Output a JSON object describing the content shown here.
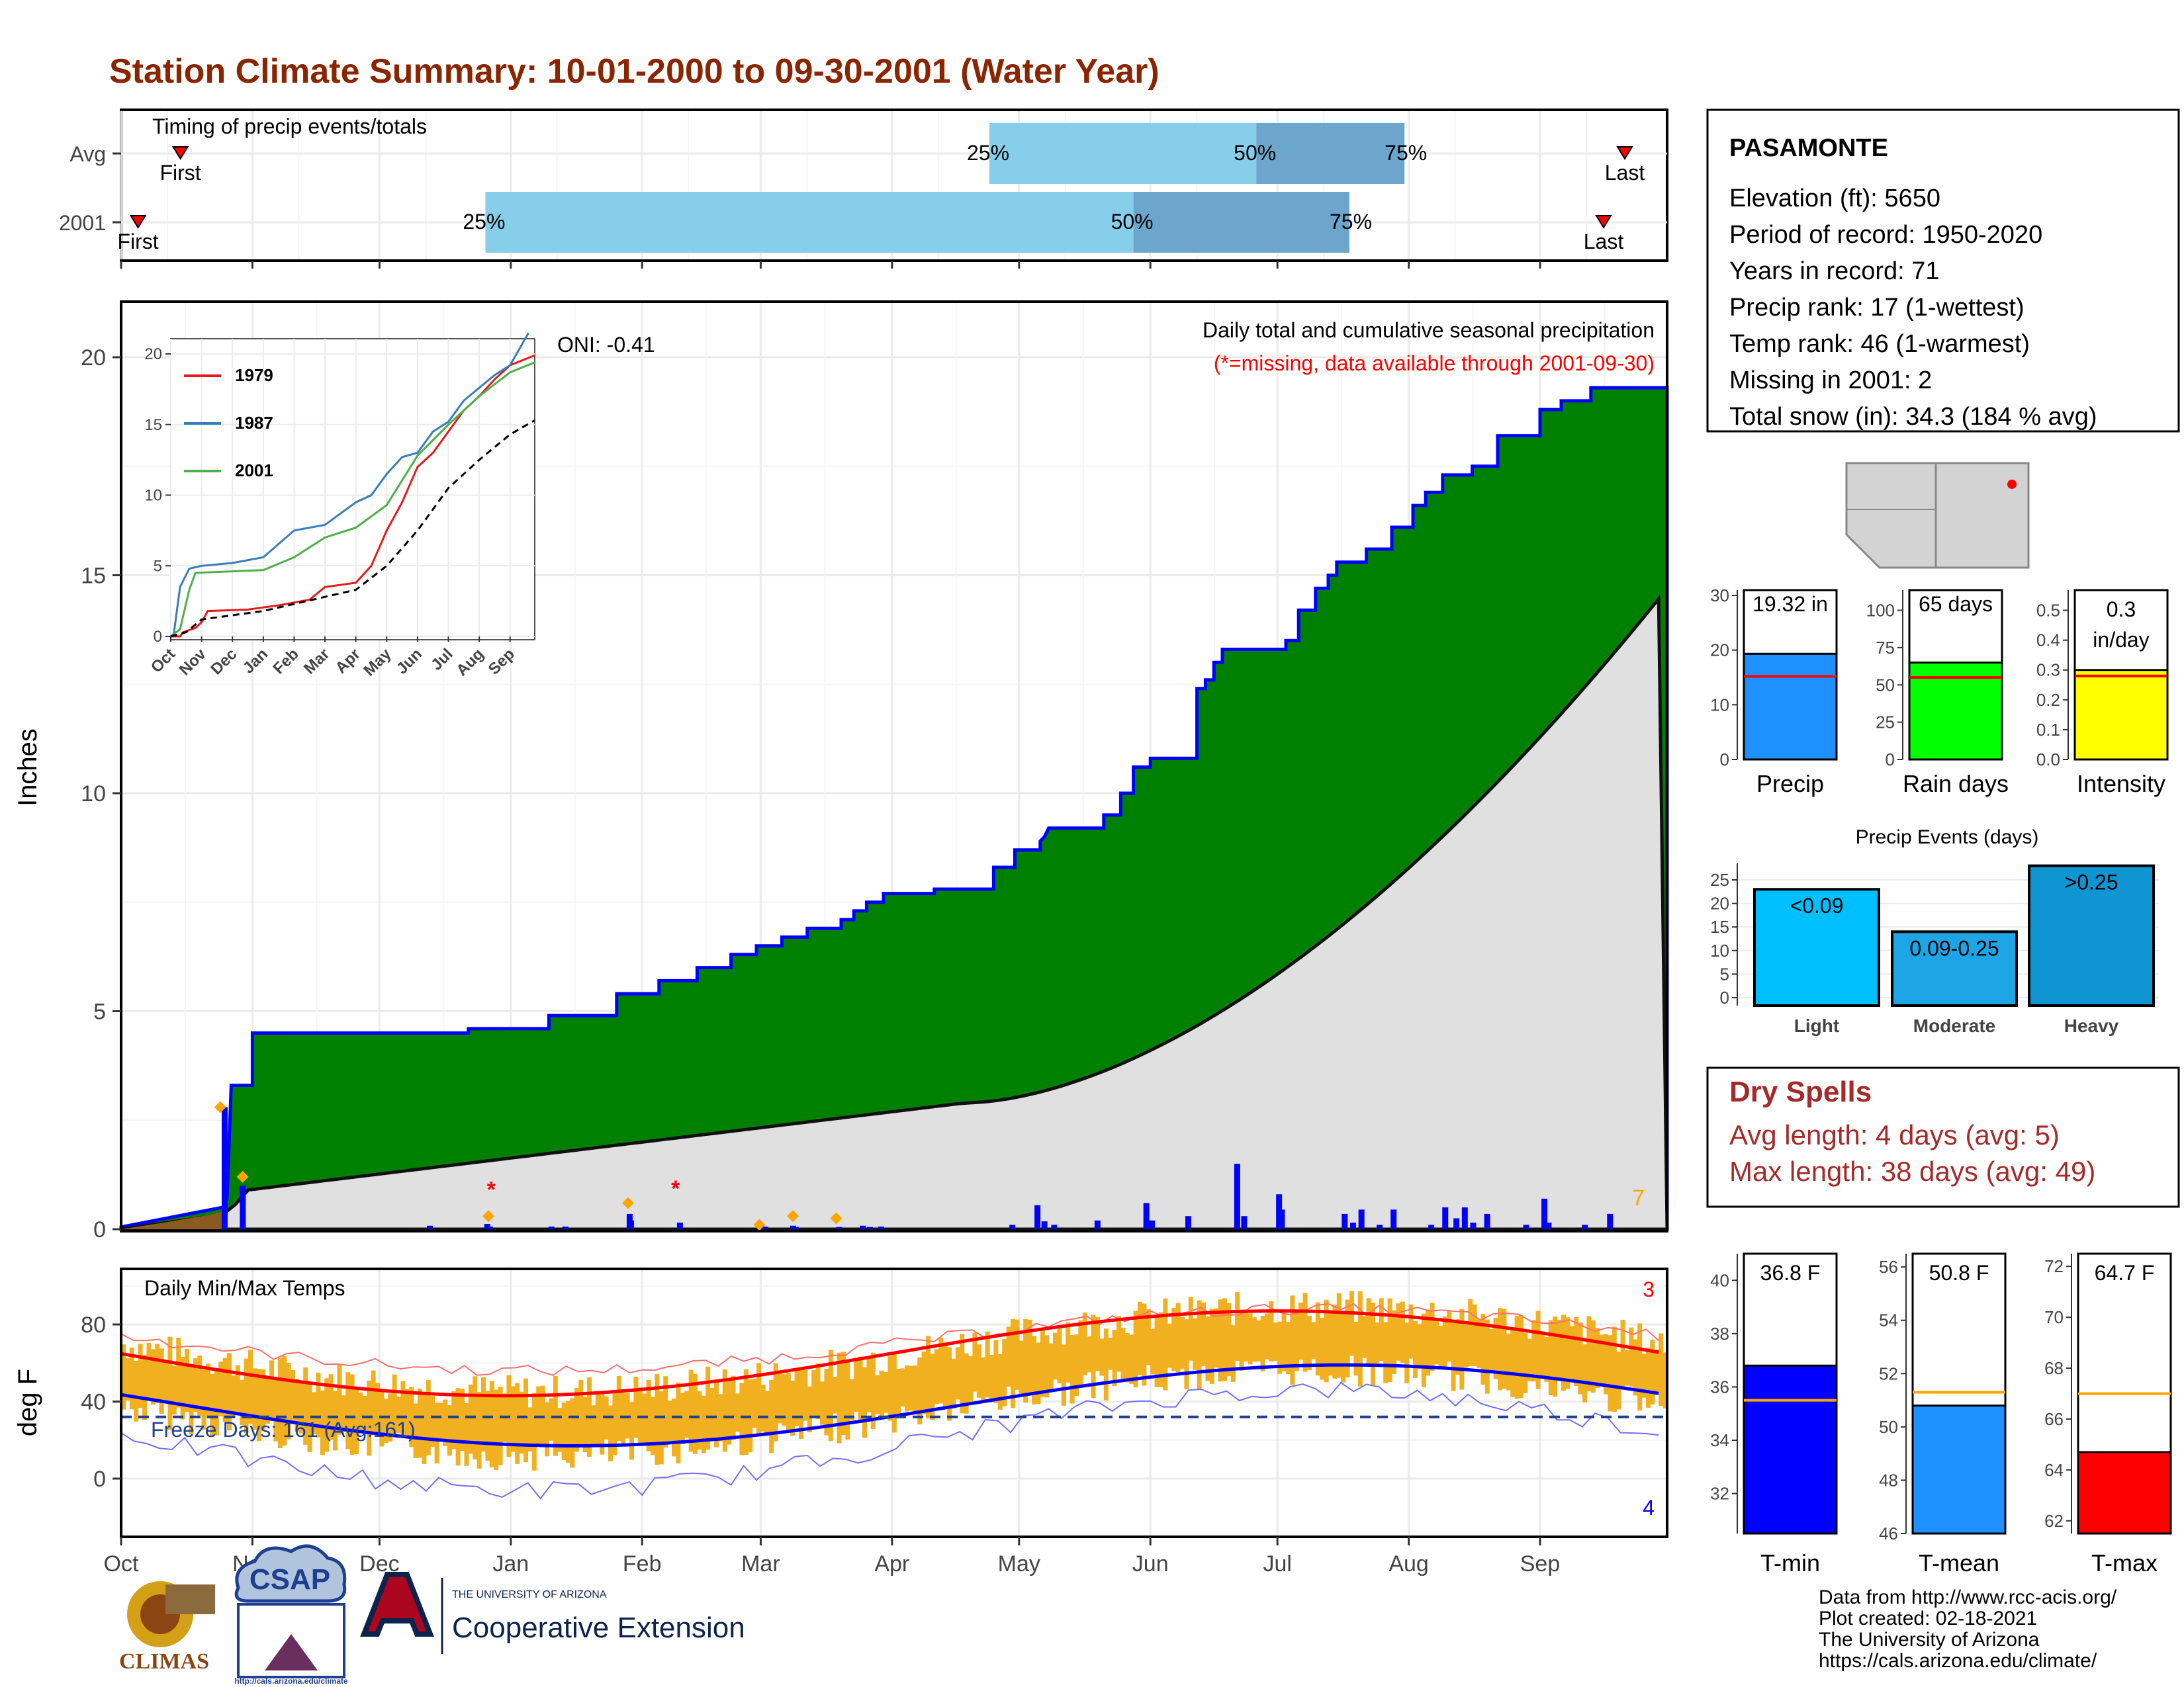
{
  "title": "Station Climate Summary: 10-01-2000 to 09-30-2001 (Water Year)",
  "timing": {
    "title": "Timing of precip events/totals",
    "rows": [
      {
        "label": "Avg",
        "first_day": 14,
        "last_day": 355,
        "p25": 205,
        "p50": 268,
        "p75": 303,
        "first_label": "First",
        "last_label": "Last",
        "p25_label": "25%",
        "p50_label": "50%",
        "p75_label": "75%"
      },
      {
        "label": "2001",
        "first_day": 4,
        "last_day": 350,
        "p25": 86,
        "p50": 239,
        "p75": 290,
        "first_label": "First",
        "last_label": "Last",
        "p25_label": "25%",
        "p50_label": "50%",
        "p75_label": "75%"
      }
    ]
  },
  "precip_panel": {
    "ylabel": "Inches",
    "yticks": [
      "0",
      "5",
      "10",
      "15",
      "20"
    ],
    "legend_title": "Daily total and cumulative seasonal precipitation",
    "legend_note": "(*=missing, data available through 2001-09-30)",
    "count_label": "7",
    "oni": "ONI: -0.41"
  },
  "inset": {
    "yticks": [
      "0",
      "5",
      "10",
      "15",
      "20"
    ],
    "xticks": [
      "Oct",
      "Nov",
      "Dec",
      "Jan",
      "Feb",
      "Mar",
      "Apr",
      "May",
      "Jun",
      "Jul",
      "Aug",
      "Sep"
    ],
    "series": [
      {
        "name": "1979",
        "color": "#e41a1c"
      },
      {
        "name": "1987",
        "color": "#377eb8"
      },
      {
        "name": "2001",
        "color": "#4daf4a"
      }
    ]
  },
  "temp_panel": {
    "ylabel": "deg F",
    "title": "Daily Min/Max Temps",
    "yticks": [
      "0",
      "40",
      "80"
    ],
    "freeze_label": "Freeze Days: 161 (Avg:161)",
    "max_count": "3",
    "min_count": "4"
  },
  "months": [
    "Oct",
    "Nov",
    "Dec",
    "Jan",
    "Feb",
    "Mar",
    "Apr",
    "May",
    "Jun",
    "Jul",
    "Aug",
    "Sep"
  ],
  "station": {
    "name": "PASAMONTE",
    "lines": [
      "Elevation (ft): 5650",
      "Period of record: 1950-2020",
      "Years in record: 71",
      "Precip rank: 17 (1-wettest)",
      "Temp rank: 46 (1-warmest)",
      "Missing in 2001: 2",
      "Total snow (in): 34.3 (184 % avg)"
    ]
  },
  "summary_bars": [
    {
      "label": "Precip",
      "value_label": "19.32 in",
      "value": 19.32,
      "avg": 15.2,
      "max": 30,
      "yticks": [
        "0",
        "10",
        "20",
        "30"
      ],
      "color": "#1e90ff"
    },
    {
      "label": "Rain days",
      "value_label": "65 days",
      "value": 65,
      "avg": 55,
      "max": 110,
      "yticks": [
        "0",
        "25",
        "50",
        "75",
        "100"
      ],
      "color": "#00ff00"
    },
    {
      "label": "Intensity",
      "value_label": "0.3 in/day",
      "value": 0.3,
      "avg": 0.28,
      "max": 0.55,
      "yticks": [
        "0.0",
        "0.1",
        "0.2",
        "0.3",
        "0.4",
        "0.5"
      ],
      "color": "#ffff00"
    }
  ],
  "precip_events": {
    "title": "Precip Events (days)",
    "yticks": [
      "0",
      "5",
      "10",
      "15",
      "20",
      "25"
    ],
    "bars": [
      {
        "label": "Light",
        "value_label": "<0.09",
        "value": 23,
        "color": "#00bfff"
      },
      {
        "label": "Moderate",
        "value_label": "0.09-0.25",
        "value": 14,
        "color": "#1ea5e6"
      },
      {
        "label": "Heavy",
        "value_label": ">0.25",
        "value": 28,
        "color": "#0f96d2"
      }
    ]
  },
  "dry_spells": {
    "title": "Dry Spells",
    "avg": "Avg length: 4 days (avg: 5)",
    "max": "Max length: 38 days (avg: 49)"
  },
  "temp_bars": [
    {
      "label": "T-min",
      "value_label": "36.8 F",
      "value": 36.8,
      "avg": 35.5,
      "min": 30.5,
      "max": 41,
      "yticks": [
        "32",
        "34",
        "36",
        "38",
        "40"
      ],
      "color": "#0000ff"
    },
    {
      "label": "T-mean",
      "value_label": "50.8 F",
      "value": 50.8,
      "avg": 51.3,
      "min": 46,
      "max": 56.5,
      "yticks": [
        "46",
        "48",
        "50",
        "52",
        "54",
        "56"
      ],
      "color": "#1e90ff"
    },
    {
      "label": "T-max",
      "value_label": "64.7 F",
      "value": 64.7,
      "avg": 67,
      "min": 61.5,
      "max": 72.5,
      "yticks": [
        "62",
        "64",
        "66",
        "68",
        "70",
        "72"
      ],
      "color": "#ff0000"
    }
  ],
  "footer": [
    "Data from http://www.rcc-acis.org/",
    "Plot created: 02-18-2021",
    "The University of Arizona",
    "https://cals.arizona.edu/climate/"
  ],
  "logos": {
    "climas": "CLIMAS",
    "csap": "CSAP",
    "csap_url": "http://cals.arizona.edu/climate",
    "ua_small": "THE UNIVERSITY OF ARIZONA",
    "ua_big": "Cooperative Extension"
  },
  "chart_data": {
    "type": "area",
    "x": [
      "Oct",
      "Nov",
      "Dec",
      "Jan",
      "Feb",
      "Mar",
      "Apr",
      "May",
      "Jun",
      "Jul",
      "Aug",
      "Sep"
    ],
    "cumulative_2001": [
      0.5,
      4.5,
      4.5,
      5.4,
      6.2,
      7.0,
      7.6,
      9.1,
      12.6,
      14.8,
      17.2,
      19.3
    ],
    "cumulative_avg": [
      0.3,
      1.0,
      1.3,
      1.6,
      1.9,
      2.2,
      2.6,
      3.0,
      4.5,
      7.2,
      11.5,
      14.7
    ],
    "tmax_avg": [
      70,
      58,
      48,
      45,
      49,
      56,
      65,
      74,
      84,
      89,
      86,
      79
    ],
    "tmin_avg": [
      38,
      28,
      20,
      16,
      20,
      24,
      30,
      38,
      47,
      55,
      56,
      48
    ],
    "freeze_line": 32,
    "ylim_precip": [
      0,
      21
    ],
    "ylim_temp": [
      -25,
      105
    ]
  }
}
